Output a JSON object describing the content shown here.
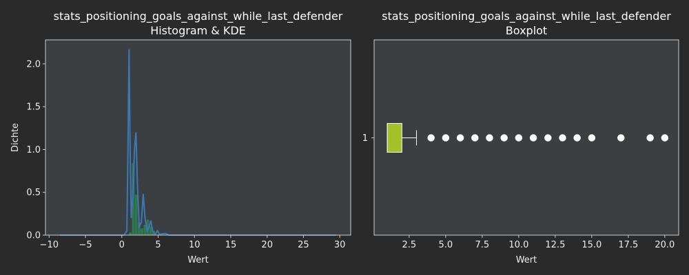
{
  "colors": {
    "figure_bg": "#2a2a2a",
    "axes_bg": "#3b3f42",
    "spine": "#cccccc",
    "hist_fill": "#2e8b57",
    "kde_line": "#3a79b5",
    "box_fill": "#a4c12a",
    "outlier": "#ffffff"
  },
  "chart_data": [
    {
      "type": "histogram",
      "title_line1": "stats_positioning_goals_against_while_last_defender",
      "title_line2": "Histogram & KDE",
      "xlabel": "Wert",
      "ylabel": "Dichte",
      "xlim": [
        -10.5,
        31.5
      ],
      "ylim": [
        0,
        2.28
      ],
      "xticks": [
        -10,
        -5,
        0,
        5,
        10,
        15,
        20,
        25,
        30
      ],
      "xtick_labels": [
        "−10",
        "−5",
        "0",
        "5",
        "10",
        "15",
        "20",
        "25",
        "30"
      ],
      "yticks": [
        0,
        0.5,
        1,
        1.5,
        2
      ],
      "ytick_labels": [
        "0.0",
        "0.5",
        "1.0",
        "1.5",
        "2.0"
      ],
      "histogram": [
        {
          "x0": 1.0,
          "x1": 1.4,
          "density": 0.03
        },
        {
          "x0": 1.4,
          "x1": 1.8,
          "density": 0.84
        },
        {
          "x0": 1.8,
          "x1": 2.2,
          "density": 0.47
        },
        {
          "x0": 2.2,
          "x1": 2.6,
          "density": 0.15
        },
        {
          "x0": 2.6,
          "x1": 3.0,
          "density": 0.08
        },
        {
          "x0": 3.0,
          "x1": 3.4,
          "density": 0.12
        },
        {
          "x0": 3.4,
          "x1": 3.8,
          "density": 0.18
        },
        {
          "x0": 3.8,
          "x1": 4.2,
          "density": 0.1
        },
        {
          "x0": 4.2,
          "x1": 4.6,
          "density": 0.05
        }
      ],
      "kde": [
        {
          "x": -8.5,
          "y": 0
        },
        {
          "x": 0.3,
          "y": 0
        },
        {
          "x": 0.7,
          "y": 0.05
        },
        {
          "x": 0.85,
          "y": 1.0
        },
        {
          "x": 1.0,
          "y": 2.17
        },
        {
          "x": 1.15,
          "y": 1.0
        },
        {
          "x": 1.3,
          "y": 0.2
        },
        {
          "x": 1.5,
          "y": 0.45
        },
        {
          "x": 1.75,
          "y": 1.0
        },
        {
          "x": 1.95,
          "y": 1.2
        },
        {
          "x": 2.15,
          "y": 0.6
        },
        {
          "x": 2.4,
          "y": 0.1
        },
        {
          "x": 2.7,
          "y": 0.15
        },
        {
          "x": 2.95,
          "y": 0.48
        },
        {
          "x": 3.2,
          "y": 0.2
        },
        {
          "x": 3.5,
          "y": 0.05
        },
        {
          "x": 3.8,
          "y": 0.1
        },
        {
          "x": 4.0,
          "y": 0.17
        },
        {
          "x": 4.25,
          "y": 0.05
        },
        {
          "x": 4.6,
          "y": 0.01
        },
        {
          "x": 4.9,
          "y": 0.05
        },
        {
          "x": 5.2,
          "y": 0.01
        },
        {
          "x": 6.0,
          "y": 0.02
        },
        {
          "x": 6.5,
          "y": 0
        },
        {
          "x": 29.5,
          "y": 0
        }
      ]
    },
    {
      "type": "boxplot",
      "title_line1": "stats_positioning_goals_against_while_last_defender",
      "title_line2": "Boxplot",
      "xlabel": "Wert",
      "xlim": [
        0.1,
        20.95
      ],
      "xticks": [
        2.5,
        5,
        7.5,
        10,
        12.5,
        15,
        17.5,
        20
      ],
      "xtick_labels": [
        "2.5",
        "5.0",
        "7.5",
        "10.0",
        "12.5",
        "15.0",
        "17.5",
        "20.0"
      ],
      "ytick_labels": [
        "1"
      ],
      "box": {
        "category": "1",
        "q1": 1,
        "median": 1,
        "q3": 2,
        "whisker_low": 1,
        "whisker_high": 3,
        "outliers": [
          4,
          5,
          6,
          7,
          8,
          9,
          10,
          11,
          12,
          13,
          14,
          15,
          17,
          19,
          20
        ]
      }
    }
  ]
}
